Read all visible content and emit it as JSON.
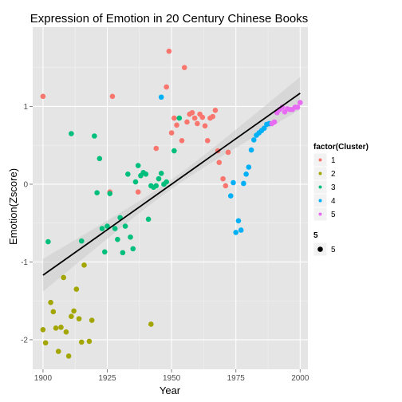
{
  "chart_data": {
    "type": "scatter",
    "title": "Expression of Emotion in 20 Century Chinese Books",
    "xlabel": "Year",
    "ylabel": "Emotion(Zscore)",
    "xlim": [
      1896,
      2003
    ],
    "ylim": [
      -2.38,
      2.02
    ],
    "x_ticks": [
      1900,
      1925,
      1950,
      1975,
      2000
    ],
    "x_tick_labels": [
      "1900",
      "1925",
      "1950",
      "1975",
      "2000"
    ],
    "y_ticks": [
      -2,
      -1,
      0,
      1
    ],
    "y_tick_labels": [
      "-2",
      "-1",
      "0",
      "1"
    ],
    "grid": true,
    "legend_position": "right",
    "colors": {
      "panel_bg": "#E5E5E5",
      "grid_major": "#FFFFFF",
      "grid_minor": "#F2F2F2",
      "ribbon": "#CCCCCC",
      "fit_line": "#000000"
    },
    "trend_line": {
      "type": "linear",
      "x": [
        1900,
        2000
      ],
      "y": [
        -1.17,
        1.17
      ],
      "band_halfwidth_ends": 0.21,
      "band_halfwidth_mid": 0.06
    },
    "legends": [
      {
        "title": "factor(Cluster)",
        "entries": [
          {
            "label": "1",
            "color": "#F8766D"
          },
          {
            "label": "2",
            "color": "#A3A500"
          },
          {
            "label": "3",
            "color": "#00BF7D"
          },
          {
            "label": "4",
            "color": "#00B0F6"
          },
          {
            "label": "5",
            "color": "#E76BF3"
          }
        ]
      },
      {
        "title": "5",
        "entries": [
          {
            "label": "5",
            "color": "#000000"
          }
        ]
      }
    ],
    "series": [
      {
        "name": "1",
        "color": "#F8766D",
        "points": [
          [
            1900,
            1.13
          ],
          [
            1927,
            1.13
          ],
          [
            1926,
            -0.1
          ],
          [
            1937,
            -0.1
          ],
          [
            1944,
            0.46
          ],
          [
            1948,
            1.25
          ],
          [
            1949,
            1.71
          ],
          [
            1950,
            0.66
          ],
          [
            1951,
            0.85
          ],
          [
            1952,
            0.76
          ],
          [
            1954,
            0.56
          ],
          [
            1955,
            1.5
          ],
          [
            1956,
            0.8
          ],
          [
            1957,
            0.9
          ],
          [
            1958,
            0.92
          ],
          [
            1959,
            0.85
          ],
          [
            1960,
            0.78
          ],
          [
            1961,
            0.9
          ],
          [
            1962,
            0.86
          ],
          [
            1963,
            0.75
          ],
          [
            1964,
            0.56
          ],
          [
            1965,
            0.85
          ],
          [
            1966,
            0.87
          ],
          [
            1967,
            0.95
          ],
          [
            1968,
            0.43
          ],
          [
            1968.5,
            0.28
          ],
          [
            1970,
            0.07
          ],
          [
            1971,
            -0.02
          ],
          [
            1972,
            0.41
          ]
        ]
      },
      {
        "name": "2",
        "color": "#A3A500",
        "points": [
          [
            1900,
            -1.87
          ],
          [
            1901,
            -2.04
          ],
          [
            1903,
            -1.52
          ],
          [
            1904,
            -1.64
          ],
          [
            1905,
            -1.85
          ],
          [
            1906,
            -2.15
          ],
          [
            1907,
            -1.84
          ],
          [
            1908,
            -1.2
          ],
          [
            1909,
            -1.9
          ],
          [
            1910,
            -2.21
          ],
          [
            1911,
            -1.7
          ],
          [
            1912,
            -1.63
          ],
          [
            1913,
            -1.35
          ],
          [
            1914,
            -1.73
          ],
          [
            1915,
            -2.03
          ],
          [
            1916,
            -1.04
          ],
          [
            1918,
            -2.02
          ],
          [
            1919,
            -1.75
          ],
          [
            1942,
            -1.8
          ]
        ]
      },
      {
        "name": "3",
        "color": "#00BF7D",
        "points": [
          [
            1902,
            -0.74
          ],
          [
            1911,
            0.65
          ],
          [
            1915,
            -0.73
          ],
          [
            1920,
            0.62
          ],
          [
            1921,
            -0.11
          ],
          [
            1922,
            0.33
          ],
          [
            1923,
            -0.57
          ],
          [
            1924,
            -0.87
          ],
          [
            1925,
            -0.54
          ],
          [
            1926,
            -0.12
          ],
          [
            1928,
            -0.57
          ],
          [
            1929,
            -0.71
          ],
          [
            1930,
            -0.43
          ],
          [
            1931,
            -0.88
          ],
          [
            1932,
            -0.54
          ],
          [
            1933,
            0.13
          ],
          [
            1934,
            -0.68
          ],
          [
            1935,
            -0.83
          ],
          [
            1936,
            0.03
          ],
          [
            1937,
            0.24
          ],
          [
            1938,
            0.11
          ],
          [
            1939,
            0.15
          ],
          [
            1940,
            0.13
          ],
          [
            1941,
            -0.45
          ],
          [
            1942,
            -0.02
          ],
          [
            1943,
            -0.04
          ],
          [
            1944,
            -0.02
          ],
          [
            1945,
            0.07
          ],
          [
            1946,
            0.14
          ],
          [
            1947,
            0.0
          ],
          [
            1948,
            0.03
          ],
          [
            1951,
            0.43
          ],
          [
            1953,
            0.85
          ]
        ]
      },
      {
        "name": "4",
        "color": "#00B0F6",
        "points": [
          [
            1946,
            1.12
          ],
          [
            1973,
            -0.15
          ],
          [
            1974,
            0.02
          ],
          [
            1975,
            -0.62
          ],
          [
            1976,
            -0.47
          ],
          [
            1977,
            -0.59
          ],
          [
            1978,
            0.01
          ],
          [
            1979,
            0.13
          ],
          [
            1980,
            0.22
          ],
          [
            1981,
            0.44
          ],
          [
            1982,
            0.57
          ],
          [
            1983,
            0.63
          ],
          [
            1984,
            0.66
          ],
          [
            1985,
            0.69
          ],
          [
            1986,
            0.72
          ],
          [
            1987,
            0.77
          ],
          [
            1988,
            0.78
          ]
        ]
      },
      {
        "name": "5",
        "color": "#E76BF3",
        "points": [
          [
            1989,
            0.78
          ],
          [
            1990,
            0.8
          ],
          [
            1991,
            0.92
          ],
          [
            1992,
            0.96
          ],
          [
            1993,
            0.99
          ],
          [
            1994,
            0.93
          ],
          [
            1995,
            0.97
          ],
          [
            1996,
            0.96
          ],
          [
            1997,
            0.96
          ],
          [
            1998,
            0.99
          ],
          [
            1999,
            0.99
          ],
          [
            2000,
            1.05
          ]
        ]
      }
    ]
  }
}
